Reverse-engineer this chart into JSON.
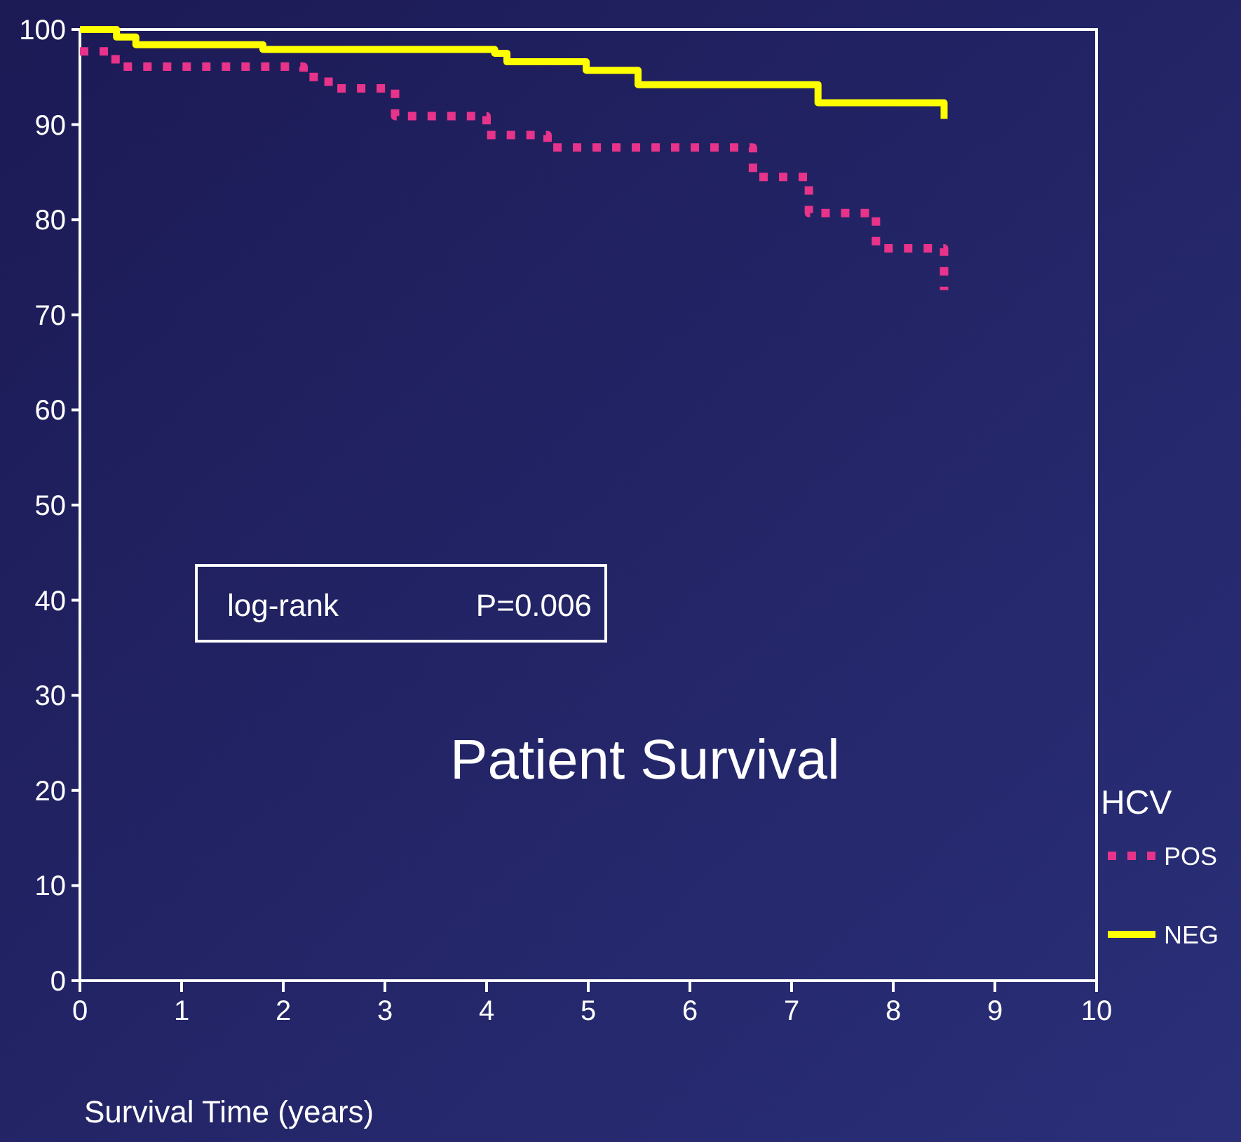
{
  "chart_data": {
    "type": "step",
    "xlabel": "Survival Time (years)",
    "legend_title": "HCV",
    "legend": "bottom right",
    "line_style": "solid",
    "marker": "none",
    "xlim": [
      0,
      10
    ],
    "xticks": [
      0,
      1,
      2,
      3,
      4,
      5,
      6,
      7,
      8,
      9,
      10
    ],
    "ylim": [
      0,
      100
    ],
    "yticks": [
      0,
      10,
      20,
      30,
      40,
      50,
      60,
      70,
      80,
      90,
      100
    ],
    "grid": false,
    "series": [
      {
        "name": "POS",
        "color": "#e8338a",
        "line_style": "dotted",
        "x": [
          0,
          0.35,
          2.2,
          2.35,
          2.5,
          3.1,
          4.0,
          4.6,
          6.62,
          7.17,
          7.83,
          8.5
        ],
        "values": [
          97.7,
          96.1,
          95,
          94.5,
          93.8,
          90.9,
          88.9,
          87.6,
          84.5,
          80.7,
          77.0,
          72.6
        ]
      },
      {
        "name": "NEG",
        "color": "#ffff00",
        "x": [
          0,
          0.36,
          0.55,
          1.8,
          4.08,
          4.2,
          4.98,
          5.49,
          7.26,
          8.5
        ],
        "values": [
          100,
          99.2,
          98.4,
          97.9,
          97.5,
          96.6,
          95.7,
          94.2,
          92.3,
          90.6
        ]
      }
    ],
    "annotations": [
      "log-rank",
      "P=0.006",
      "Patient Survival"
    ]
  }
}
